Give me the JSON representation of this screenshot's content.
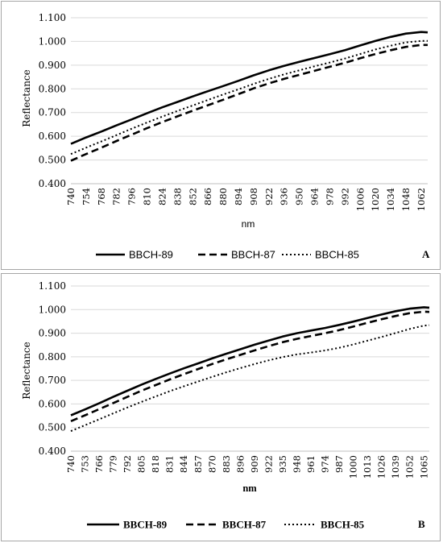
{
  "chart_data": [
    {
      "panel": "A",
      "type": "line",
      "xlabel": "nm",
      "ylabel": "Reflectance",
      "ylim": [
        0.4,
        1.1
      ],
      "yticks": [
        "0.400",
        "0.500",
        "0.600",
        "0.700",
        "0.800",
        "0.900",
        "1.000",
        "1.100"
      ],
      "categories": [
        "740",
        "754",
        "768",
        "782",
        "796",
        "810",
        "824",
        "838",
        "852",
        "866",
        "880",
        "894",
        "908",
        "922",
        "936",
        "950",
        "964",
        "978",
        "992",
        "1006",
        "1020",
        "1034",
        "1048",
        "1062"
      ],
      "x": [
        740,
        1068
      ],
      "grid": "horizontal",
      "legend": "bottom",
      "series": [
        {
          "name": "BBCH-89",
          "style": "solid",
          "x": [
            740,
            754,
            768,
            782,
            796,
            810,
            824,
            838,
            852,
            866,
            880,
            894,
            908,
            922,
            936,
            950,
            964,
            978,
            992,
            1006,
            1020,
            1034,
            1048,
            1062,
            1068
          ],
          "values": [
            0.568,
            0.595,
            0.62,
            0.646,
            0.671,
            0.697,
            0.722,
            0.745,
            0.768,
            0.79,
            0.812,
            0.834,
            0.857,
            0.878,
            0.897,
            0.914,
            0.93,
            0.946,
            0.963,
            0.983,
            1.002,
            1.019,
            1.033,
            1.04,
            1.038
          ]
        },
        {
          "name": "BBCH-87",
          "style": "dashed",
          "x": [
            740,
            754,
            768,
            782,
            796,
            810,
            824,
            838,
            852,
            866,
            880,
            894,
            908,
            922,
            936,
            950,
            964,
            978,
            992,
            1006,
            1020,
            1034,
            1048,
            1062,
            1068
          ],
          "values": [
            0.497,
            0.525,
            0.552,
            0.58,
            0.607,
            0.634,
            0.66,
            0.684,
            0.708,
            0.731,
            0.754,
            0.778,
            0.802,
            0.823,
            0.842,
            0.859,
            0.876,
            0.893,
            0.91,
            0.929,
            0.947,
            0.963,
            0.977,
            0.985,
            0.985
          ]
        },
        {
          "name": "BBCH-85",
          "style": "dotted",
          "x": [
            740,
            754,
            768,
            782,
            796,
            810,
            824,
            838,
            852,
            866,
            880,
            894,
            908,
            922,
            936,
            950,
            964,
            978,
            992,
            1006,
            1020,
            1034,
            1048,
            1062,
            1068
          ],
          "values": [
            0.525,
            0.552,
            0.578,
            0.605,
            0.632,
            0.658,
            0.683,
            0.707,
            0.73,
            0.753,
            0.776,
            0.798,
            0.821,
            0.842,
            0.861,
            0.878,
            0.895,
            0.911,
            0.928,
            0.947,
            0.966,
            0.982,
            0.996,
            1.002,
            1.002
          ]
        }
      ]
    },
    {
      "panel": "B",
      "type": "line",
      "xlabel": "nm",
      "ylabel": "Reflectance",
      "ylim": [
        0.4,
        1.1
      ],
      "yticks": [
        "0.400",
        "0.500",
        "0.600",
        "0.700",
        "0.800",
        "0.900",
        "1.000",
        "1.100"
      ],
      "categories": [
        "740",
        "753",
        "766",
        "779",
        "792",
        "805",
        "818",
        "831",
        "844",
        "857",
        "870",
        "883",
        "896",
        "909",
        "922",
        "935",
        "948",
        "961",
        "974",
        "987",
        "1000",
        "1013",
        "1026",
        "1039",
        "1052",
        "1065"
      ],
      "x": [
        740,
        1070
      ],
      "grid": "horizontal",
      "legend": "bottom",
      "series": [
        {
          "name": "BBCH-89",
          "style": "solid",
          "x": [
            740,
            753,
            766,
            779,
            792,
            805,
            818,
            831,
            844,
            857,
            870,
            883,
            896,
            909,
            922,
            935,
            948,
            961,
            974,
            987,
            1000,
            1013,
            1026,
            1039,
            1052,
            1065,
            1070
          ],
          "values": [
            0.552,
            0.577,
            0.603,
            0.63,
            0.656,
            0.682,
            0.706,
            0.729,
            0.751,
            0.772,
            0.793,
            0.813,
            0.832,
            0.851,
            0.869,
            0.886,
            0.9,
            0.911,
            0.922,
            0.935,
            0.949,
            0.964,
            0.979,
            0.993,
            1.004,
            1.01,
            1.008
          ]
        },
        {
          "name": "BBCH-87",
          "style": "dashed",
          "x": [
            740,
            753,
            766,
            779,
            792,
            805,
            818,
            831,
            844,
            857,
            870,
            883,
            896,
            909,
            922,
            935,
            948,
            961,
            974,
            987,
            1000,
            1013,
            1026,
            1039,
            1052,
            1065,
            1070
          ],
          "values": [
            0.527,
            0.552,
            0.578,
            0.604,
            0.63,
            0.656,
            0.68,
            0.704,
            0.726,
            0.748,
            0.769,
            0.789,
            0.808,
            0.827,
            0.845,
            0.862,
            0.876,
            0.888,
            0.9,
            0.913,
            0.928,
            0.944,
            0.959,
            0.973,
            0.985,
            0.991,
            0.99
          ]
        },
        {
          "name": "BBCH-85",
          "style": "dotted",
          "x": [
            740,
            753,
            766,
            779,
            792,
            805,
            818,
            831,
            844,
            857,
            870,
            883,
            896,
            909,
            922,
            935,
            948,
            961,
            974,
            987,
            1000,
            1013,
            1026,
            1039,
            1052,
            1065,
            1070
          ],
          "values": [
            0.485,
            0.51,
            0.535,
            0.56,
            0.585,
            0.609,
            0.632,
            0.654,
            0.675,
            0.695,
            0.715,
            0.734,
            0.752,
            0.769,
            0.785,
            0.799,
            0.81,
            0.818,
            0.827,
            0.838,
            0.852,
            0.868,
            0.884,
            0.901,
            0.918,
            0.932,
            0.934
          ]
        }
      ]
    }
  ]
}
